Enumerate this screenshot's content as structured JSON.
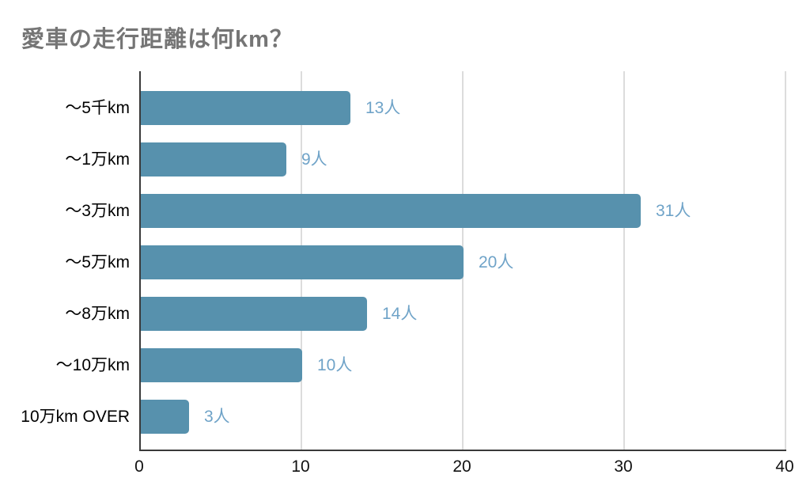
{
  "chart_data": {
    "type": "bar",
    "orientation": "horizontal",
    "title": "愛車の走行距離は何km？",
    "categories": [
      "～5千km",
      "～1万km",
      "～3万km",
      "～5万km",
      "～8万km",
      "～10万km",
      "10万km OVER"
    ],
    "values": [
      13,
      9,
      31,
      20,
      14,
      10,
      3
    ],
    "value_labels": [
      "13人",
      "9人",
      "31人",
      "20人",
      "14人",
      "10人",
      "3人"
    ],
    "value_suffix": "人",
    "xlim": [
      0,
      40
    ],
    "x_ticks": [
      0,
      10,
      20,
      30,
      40
    ],
    "x_tick_labels": [
      "0",
      "10",
      "20",
      "30",
      "40"
    ],
    "grid": "vertical-only",
    "legend": "none",
    "colors": {
      "bar": "#5791ad",
      "value_label": "#6fa3c8",
      "title": "#757575",
      "axis_line": "#3a3a3a",
      "gridline": "#dcdcdc",
      "category_label": "#000000",
      "tick_label": "#111111",
      "background": "#ffffff"
    }
  }
}
